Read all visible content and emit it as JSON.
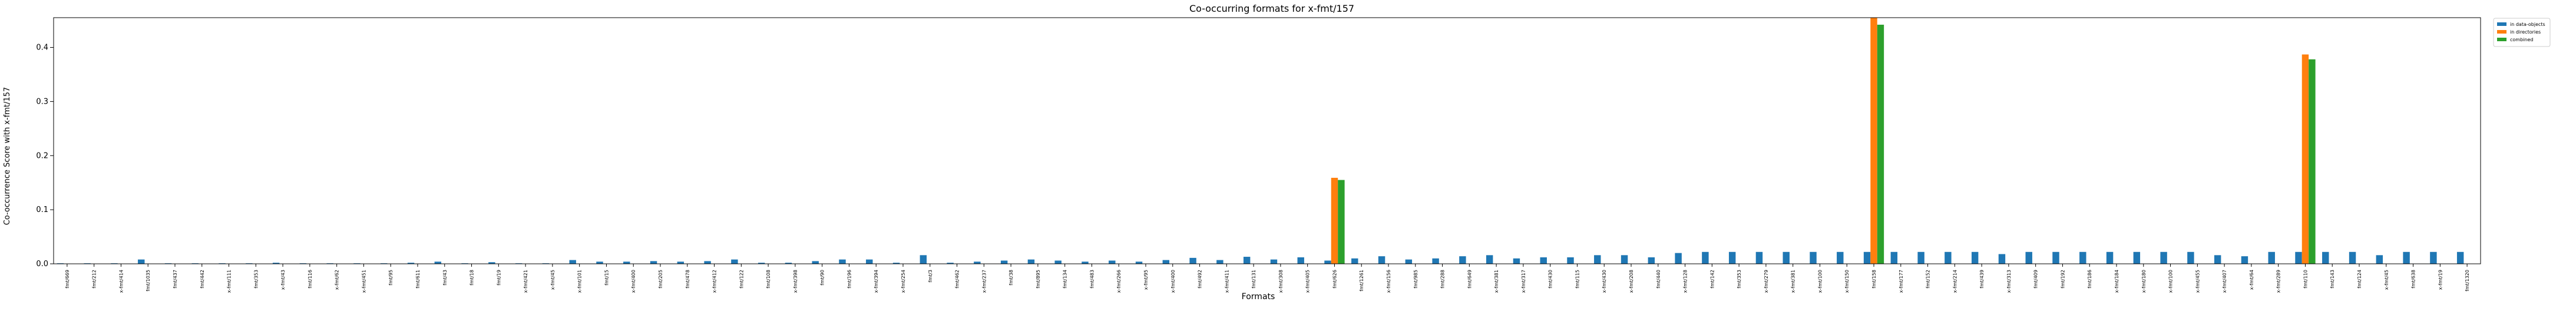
{
  "chart_data": {
    "type": "bar",
    "title": "Co-occurring formats for x-fmt/157",
    "xlabel": "Formats",
    "ylabel": "Co-occurrence Score with x-fmt/157",
    "ylim": [
      0,
      0.455
    ],
    "yticks": [
      "0.0",
      "0.1",
      "0.2",
      "0.3",
      "0.4"
    ],
    "ytick_values": [
      0,
      0.1,
      0.2,
      0.3,
      0.4
    ],
    "grid": false,
    "legend_position": "outside top-right",
    "colors": [
      "#1f77b4",
      "#ff7f0e",
      "#2ca02c"
    ],
    "categories": [
      "fmt/669",
      "fmt/212",
      "x-fmt/414",
      "fmt/1035",
      "fmt/437",
      "fmt/442",
      "x-fmt/111",
      "fmt/353",
      "x-fmt/43",
      "fmt/116",
      "x-fmt/62",
      "x-fmt/451",
      "fmt/95",
      "fmt/611",
      "fmt/43",
      "fmt/18",
      "fmt/19",
      "x-fmt/421",
      "x-fmt/45",
      "x-fmt/101",
      "fmt/15",
      "x-fmt/400",
      "fmt/205",
      "fmt/478",
      "x-fmt/412",
      "fmt/122",
      "fmt/108",
      "x-fmt/398",
      "fmt/90",
      "fmt/196",
      "x-fmt/394",
      "x-fmt/254",
      "fmt/3",
      "fmt/462",
      "x-fmt/237",
      "fmt/38",
      "fmt/895",
      "fmt/134",
      "fmt/483",
      "x-fmt/266",
      "x-fmt/95",
      "x-fmt/400",
      "fmt/492",
      "x-fmt/411",
      "fmt/131",
      "x-fmt/308",
      "x-fmt/405",
      "fmt/626",
      "fmt/1261",
      "x-fmt/156",
      "fmt/985",
      "fmt/288",
      "fmt/649",
      "x-fmt/381",
      "x-fmt/317",
      "fmt/430",
      "fmt/115",
      "x-fmt/430",
      "x-fmt/208",
      "fmt/440",
      "x-fmt/128",
      "fmt/142",
      "fmt/353",
      "x-fmt/279",
      "x-fmt/381",
      "x-fmt/100",
      "x-fmt/150",
      "fmt/158",
      "x-fmt/177",
      "fmt/152",
      "x-fmt/214",
      "fmt/439",
      "x-fmt/313",
      "fmt/409",
      "fmt/192",
      "fmt/186",
      "x-fmt/184",
      "x-fmt/180",
      "x-fmt/100",
      "x-fmt/455",
      "x-fmt/407",
      "x-fmt/64",
      "x-fmt/289",
      "fmt/110",
      "fmt/143",
      "fmt/124",
      "x-fmt/45",
      "fmt/638",
      "x-fmt/19",
      "fmt/1320"
    ],
    "series": [
      {
        "name": "in data-objects",
        "values": [
          0.001,
          0.001,
          0.001,
          0.008,
          0.001,
          0.001,
          0.001,
          0.001,
          0.002,
          0.001,
          0.001,
          0.001,
          0.001,
          0.002,
          0.004,
          0.001,
          0.003,
          0.001,
          0.001,
          0.007,
          0.004,
          0.004,
          0.005,
          0.004,
          0.005,
          0.008,
          0.002,
          0.002,
          0.005,
          0.008,
          0.008,
          0.002,
          0.016,
          0.002,
          0.004,
          0.006,
          0.008,
          0.006,
          0.004,
          0.006,
          0.004,
          0.007,
          0.011,
          0.007,
          0.013,
          0.008,
          0.012,
          0.006,
          0.01,
          0.014,
          0.008,
          0.01,
          0.014,
          0.016,
          0.01,
          0.012,
          0.012,
          0.016,
          0.016,
          0.012,
          0.02,
          0.022,
          0.022,
          0.022,
          0.022,
          0.022,
          0.022,
          0.022,
          0.022,
          0.022,
          0.022,
          0.022,
          0.018,
          0.022,
          0.022,
          0.022,
          0.022,
          0.022,
          0.022,
          0.022,
          0.016,
          0.014,
          0.022,
          0.022,
          0.022,
          0.022,
          0.016,
          0.022,
          0.022,
          0.022
        ]
      },
      {
        "name": "in directories",
        "values": [
          0,
          0,
          0,
          0,
          0,
          0,
          0,
          0,
          0,
          0,
          0,
          0,
          0,
          0,
          0,
          0,
          0,
          0,
          0,
          0,
          0,
          0,
          0,
          0,
          0,
          0,
          0,
          0,
          0,
          0,
          0,
          0,
          0,
          0,
          0,
          0,
          0,
          0,
          0,
          0,
          0,
          0,
          0,
          0,
          0,
          0,
          0,
          0.159,
          0,
          0,
          0,
          0,
          0,
          0,
          0,
          0,
          0,
          0,
          0,
          0,
          0,
          0,
          0,
          0,
          0,
          0,
          0,
          0.455,
          0,
          0,
          0,
          0,
          0,
          0,
          0,
          0,
          0,
          0,
          0,
          0,
          0,
          0,
          0,
          0.387,
          0,
          0,
          0,
          0,
          0,
          0
        ]
      },
      {
        "name": "combined",
        "values": [
          0,
          0,
          0,
          0,
          0,
          0,
          0,
          0,
          0,
          0,
          0,
          0,
          0,
          0,
          0,
          0,
          0,
          0,
          0,
          0,
          0,
          0,
          0,
          0,
          0,
          0,
          0,
          0,
          0,
          0,
          0,
          0,
          0,
          0,
          0,
          0,
          0,
          0,
          0,
          0,
          0,
          0,
          0,
          0,
          0,
          0,
          0,
          0.155,
          0,
          0,
          0,
          0,
          0,
          0,
          0,
          0,
          0,
          0,
          0,
          0,
          0,
          0,
          0,
          0,
          0,
          0,
          0,
          0.442,
          0,
          0,
          0,
          0,
          0,
          0,
          0,
          0,
          0,
          0,
          0,
          0,
          0,
          0,
          0,
          0.378,
          0,
          0,
          0,
          0,
          0,
          0
        ]
      }
    ]
  }
}
